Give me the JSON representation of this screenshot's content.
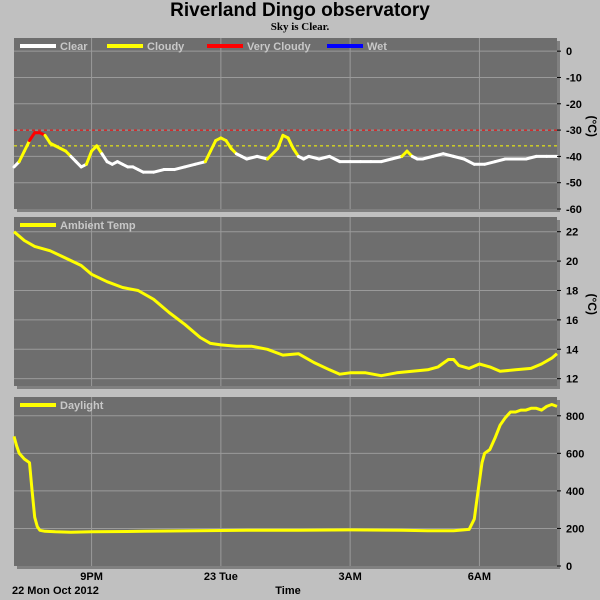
{
  "title": "Riverland Dingo observatory",
  "subtitle": "Sky is Clear.",
  "date_label": "22 Mon Oct 2012",
  "x_axis_label": "Time",
  "x_ticks": [
    {
      "t": 1.0,
      "label": "9PM"
    },
    {
      "t": 3.5,
      "label": "23 Tue"
    },
    {
      "t": 6.0,
      "label": "3AM"
    },
    {
      "t": 8.5,
      "label": "6AM"
    }
  ],
  "chart_data": [
    {
      "type": "line",
      "legend": [
        {
          "name": "Clear",
          "color": "#ffffff"
        },
        {
          "name": "Cloudy",
          "color": "#ffff00"
        },
        {
          "name": "Very Cloudy",
          "color": "#ff0000"
        },
        {
          "name": "Wet",
          "color": "#0000ff"
        }
      ],
      "y_unit": "(°C)",
      "ylim": [
        -60,
        5
      ],
      "y_ticks": [
        0,
        -10,
        -20,
        -30,
        -40,
        -50,
        -60
      ],
      "thresholds": [
        {
          "value": -30,
          "color": "#ff0000"
        },
        {
          "value": -36,
          "color": "#ffff00"
        }
      ],
      "series": [
        {
          "x": [
            -0.5,
            -0.4,
            -0.3,
            -0.2,
            -0.1,
            0.0,
            0.1,
            0.2,
            0.3,
            0.4,
            0.5,
            0.6,
            0.7,
            0.8,
            0.9,
            1.0,
            1.1,
            1.2,
            1.3,
            1.4,
            1.5,
            1.6,
            1.7,
            1.8,
            1.9,
            2.0,
            2.2,
            2.4,
            2.6,
            2.8,
            3.0,
            3.2,
            3.3,
            3.4,
            3.5,
            3.6,
            3.7,
            3.8,
            3.9,
            4.0,
            4.2,
            4.4,
            4.6,
            4.7,
            4.8,
            4.9,
            5.0,
            5.1,
            5.2,
            5.4,
            5.6,
            5.8,
            6.0,
            6.2,
            6.4,
            6.6,
            6.8,
            7.0,
            7.1,
            7.2,
            7.3,
            7.4,
            7.6,
            7.8,
            8.0,
            8.2,
            8.4,
            8.6,
            8.8,
            9.0,
            9.2,
            9.4,
            9.6,
            9.8,
            10.0
          ],
          "y": [
            -44,
            -42,
            -38,
            -34,
            -31,
            -31,
            -32,
            -35,
            -36,
            -37,
            -38,
            -40,
            -42,
            -44,
            -43,
            -38,
            -36,
            -39,
            -42,
            -43,
            -42,
            -43,
            -44,
            -44,
            -45,
            -46,
            -46,
            -45,
            -45,
            -44,
            -43,
            -42,
            -38,
            -34,
            -33,
            -34,
            -37,
            -39,
            -40,
            -41,
            -40,
            -41,
            -37,
            -32,
            -33,
            -37,
            -40,
            -41,
            -40,
            -41,
            -40,
            -42,
            -42,
            -42,
            -42,
            -42,
            -41,
            -40,
            -38,
            -40,
            -41,
            -41,
            -40,
            -39,
            -40,
            -41,
            -43,
            -43,
            -42,
            -41,
            -41,
            -41,
            -40,
            -40,
            -40
          ]
        }
      ]
    },
    {
      "type": "line",
      "legend": [
        {
          "name": "Ambient Temp",
          "color": "#ffff00"
        }
      ],
      "y_unit": "(°C)",
      "ylim": [
        11.5,
        23
      ],
      "y_ticks": [
        22,
        20,
        18,
        16,
        14,
        12
      ],
      "series": [
        {
          "name": "Ambient Temp",
          "x": [
            -0.5,
            -0.3,
            -0.1,
            0.2,
            0.5,
            0.8,
            1.0,
            1.3,
            1.6,
            1.9,
            2.2,
            2.5,
            2.8,
            3.1,
            3.3,
            3.5,
            3.8,
            4.1,
            4.4,
            4.7,
            5.0,
            5.3,
            5.6,
            5.8,
            6.0,
            6.3,
            6.6,
            6.9,
            7.2,
            7.5,
            7.7,
            7.9,
            8.0,
            8.1,
            8.3,
            8.5,
            8.7,
            8.9,
            9.2,
            9.5,
            9.7,
            9.9,
            10.0
          ],
          "y": [
            22,
            21.4,
            21.0,
            20.7,
            20.2,
            19.7,
            19.1,
            18.6,
            18.2,
            18.0,
            17.4,
            16.5,
            15.7,
            14.8,
            14.4,
            14.3,
            14.2,
            14.2,
            14.0,
            13.6,
            13.7,
            13.1,
            12.6,
            12.3,
            12.4,
            12.4,
            12.2,
            12.4,
            12.5,
            12.6,
            12.8,
            13.3,
            13.3,
            12.9,
            12.7,
            13.0,
            12.8,
            12.5,
            12.6,
            12.7,
            13.0,
            13.4,
            13.7
          ]
        }
      ]
    },
    {
      "type": "line",
      "legend": [
        {
          "name": "Daylight",
          "color": "#ffff00"
        }
      ],
      "ylim": [
        0,
        900
      ],
      "y_ticks": [
        800,
        600,
        400,
        200,
        0
      ],
      "series": [
        {
          "name": "Daylight",
          "x": [
            -0.5,
            -0.45,
            -0.4,
            -0.3,
            -0.2,
            -0.15,
            -0.1,
            -0.05,
            0.0,
            0.1,
            0.3,
            0.6,
            1.0,
            2.0,
            3.0,
            4.0,
            5.0,
            6.0,
            7.0,
            7.5,
            8.0,
            8.3,
            8.4,
            8.45,
            8.5,
            8.55,
            8.6,
            8.7,
            8.8,
            8.9,
            9.0,
            9.1,
            9.2,
            9.3,
            9.4,
            9.5,
            9.6,
            9.7,
            9.8,
            9.9,
            10.0
          ],
          "y": [
            690,
            640,
            600,
            570,
            550,
            400,
            260,
            210,
            190,
            185,
            182,
            180,
            182,
            185,
            188,
            190,
            190,
            192,
            190,
            188,
            188,
            195,
            250,
            350,
            450,
            550,
            600,
            620,
            680,
            750,
            790,
            820,
            820,
            830,
            830,
            840,
            840,
            830,
            850,
            860,
            850
          ]
        }
      ]
    }
  ]
}
